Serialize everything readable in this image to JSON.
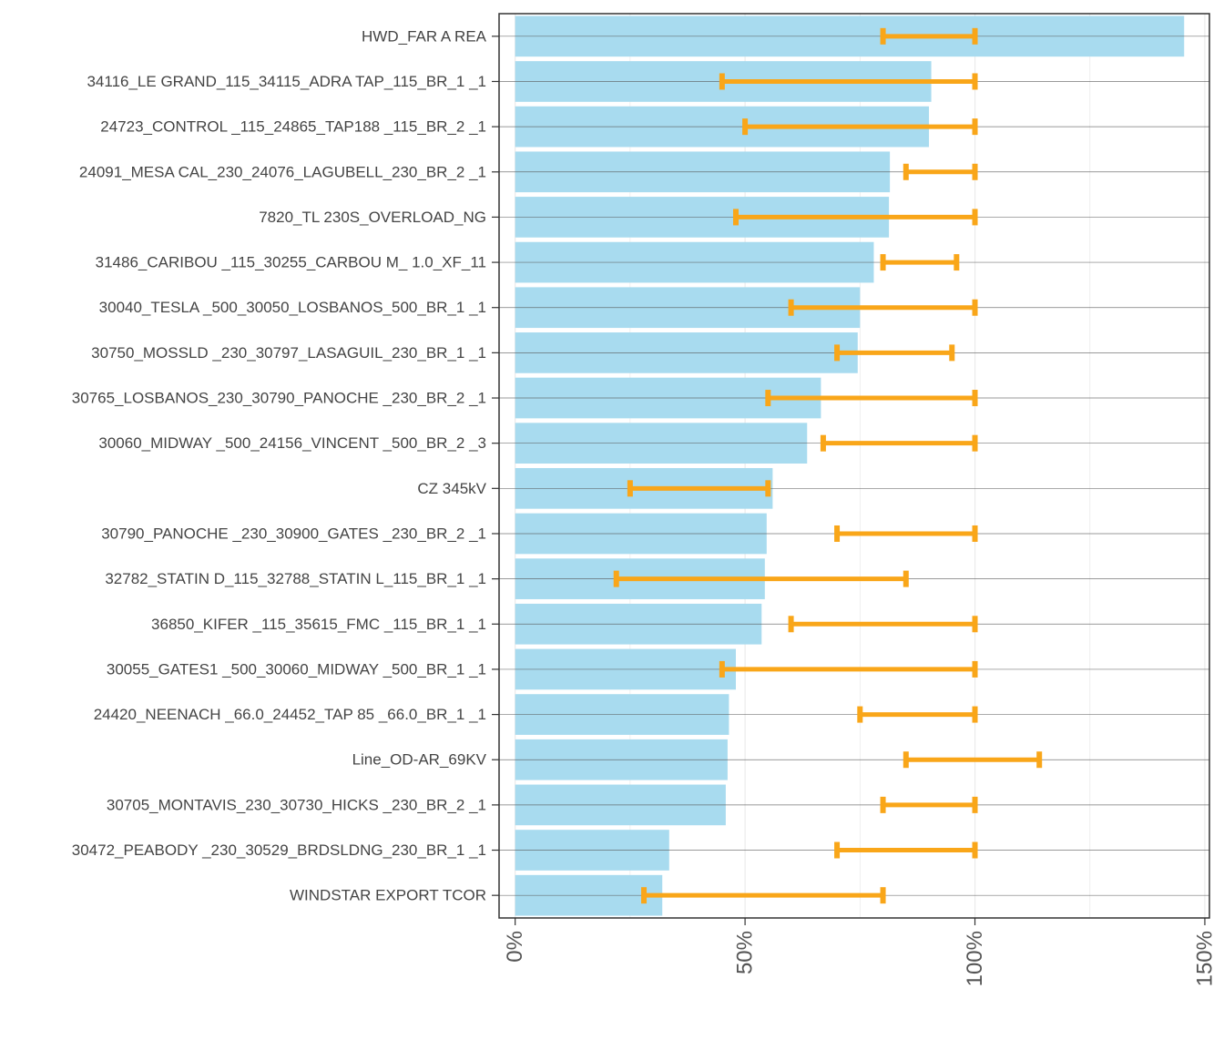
{
  "chart_data": {
    "type": "bar",
    "orientation": "horizontal",
    "title": "",
    "xlabel": "",
    "ylabel": "",
    "xlim": [
      -0.035,
      1.51
    ],
    "x_ticks": [
      0,
      0.5,
      1.0,
      1.5
    ],
    "x_tick_labels": [
      "0%",
      "50%",
      "100%",
      "150%"
    ],
    "bar_color": "#a8dbef",
    "range_color": "#f9a619",
    "categories": [
      "HWD_FAR A REA",
      "34116_LE GRAND_115_34115_ADRA TAP_115_BR_1 _1",
      "24723_CONTROL _115_24865_TAP188  _115_BR_2 _1",
      "24091_MESA CAL_230_24076_LAGUBELL_230_BR_2 _1",
      "7820_TL 230S_OVERLOAD_NG",
      "31486_CARIBOU _115_30255_CARBOU M_ 1.0_XF_11",
      "30040_TESLA    _500_30050_LOSBANOS_500_BR_1 _1",
      "30750_MOSSLD  _230_30797_LASAGUIL_230_BR_1 _1",
      "30765_LOSBANOS_230_30790_PANOCHE _230_BR_2 _1",
      "30060_MIDWAY  _500_24156_VINCENT _500_BR_2 _3",
      "CZ 345kV",
      "30790_PANOCHE _230_30900_GATES   _230_BR_2 _1",
      "32782_STATIN D_115_32788_STATIN L_115_BR_1 _1",
      "36850_KIFER    _115_35615_FMC      _115_BR_1 _1",
      "30055_GATES1  _500_30060_MIDWAY  _500_BR_1 _1",
      "24420_NEENACH _66.0_24452_TAP 85  _66.0_BR_1 _1",
      "Line_OD-AR_69KV",
      "30705_MONTAVIS_230_30730_HICKS   _230_BR_2 _1",
      "30472_PEABODY _230_30529_BRDSLDNG_230_BR_1 _1",
      "WINDSTAR EXPORT TCOR"
    ],
    "values": [
      1.455,
      0.905,
      0.9,
      0.815,
      0.813,
      0.78,
      0.75,
      0.745,
      0.665,
      0.635,
      0.56,
      0.547,
      0.543,
      0.536,
      0.48,
      0.465,
      0.462,
      0.458,
      0.335,
      0.32
    ],
    "range_low": [
      0.8,
      0.45,
      0.5,
      0.85,
      0.48,
      0.8,
      0.6,
      0.7,
      0.55,
      0.67,
      0.25,
      0.7,
      0.22,
      0.6,
      0.45,
      0.75,
      0.85,
      0.8,
      0.7,
      0.28
    ],
    "range_high": [
      1.0,
      1.0,
      1.0,
      1.0,
      1.0,
      0.96,
      1.0,
      0.95,
      1.0,
      1.0,
      0.55,
      1.0,
      0.85,
      1.0,
      1.0,
      1.0,
      1.14,
      1.0,
      1.0,
      0.8
    ]
  }
}
